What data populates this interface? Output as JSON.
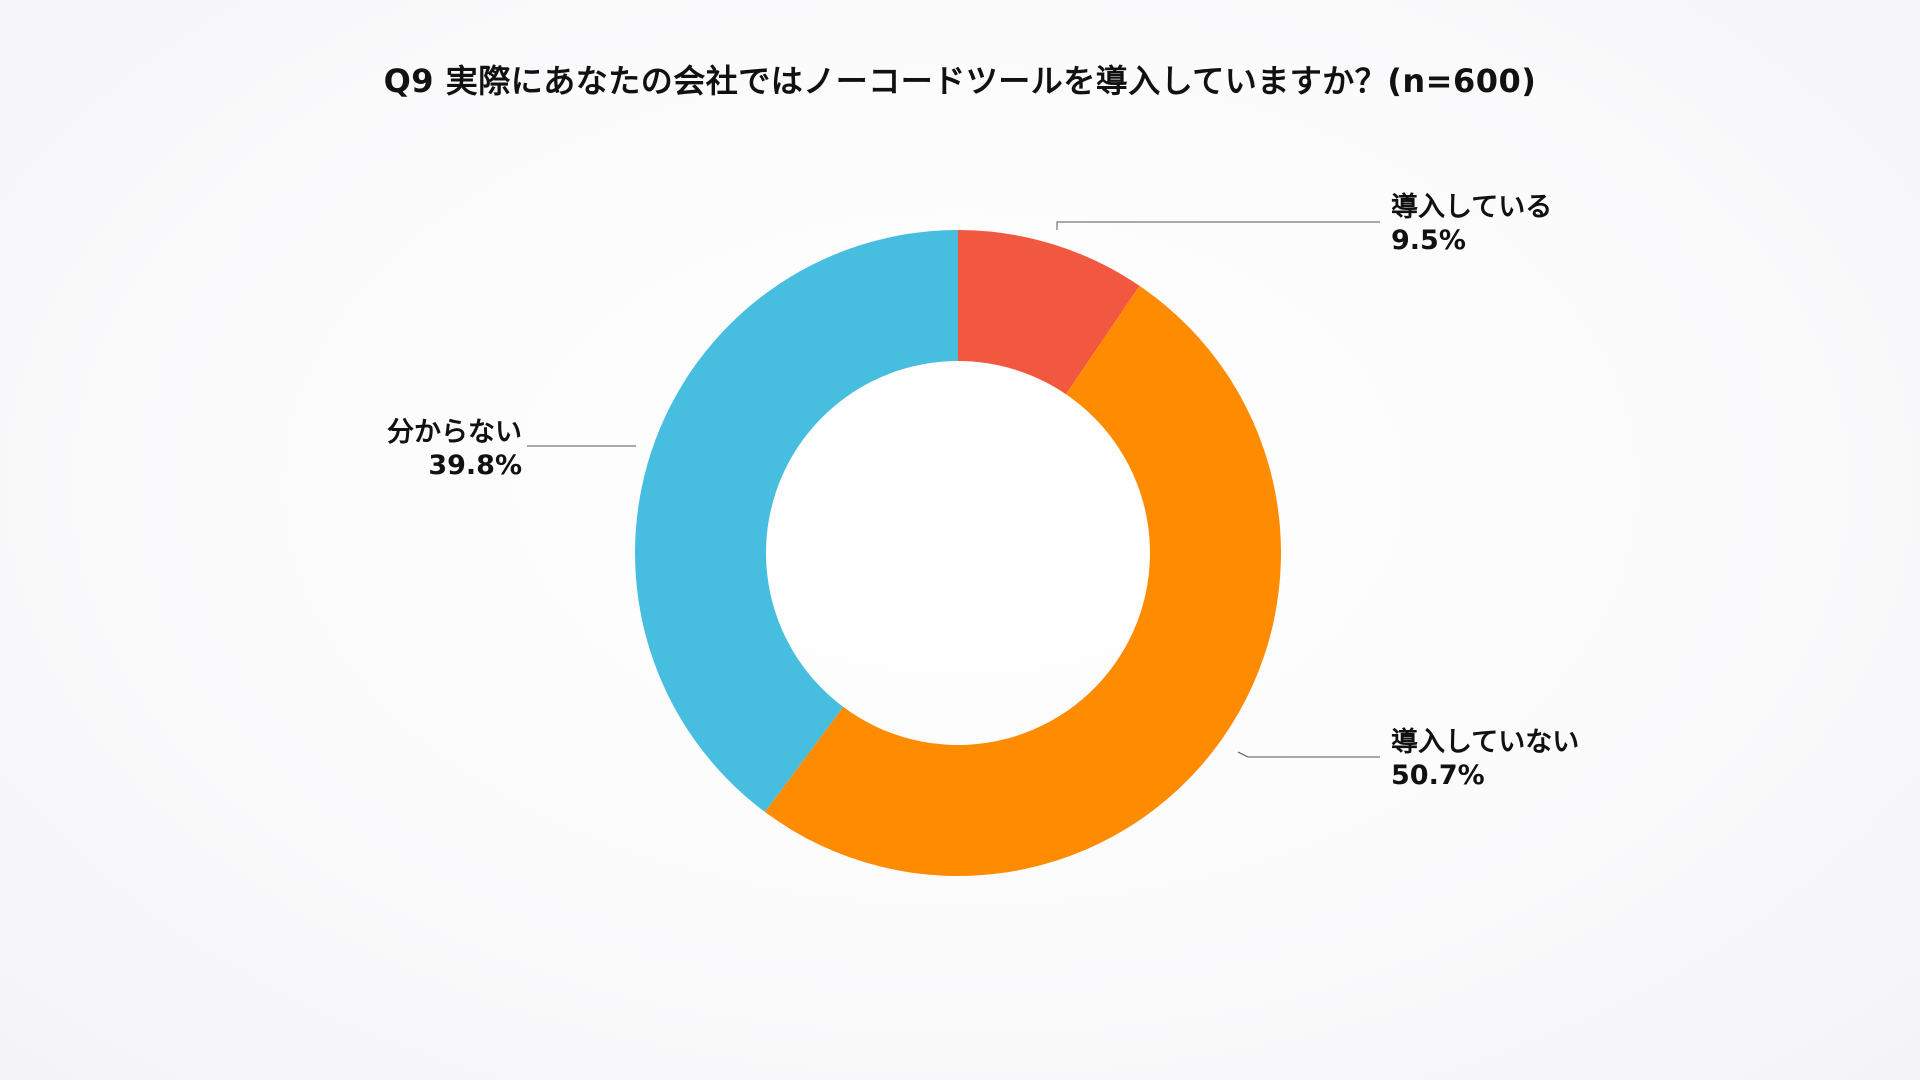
{
  "chart_data": {
    "type": "pie",
    "title": "Q9 実際にあなたの会社ではノーコードツールを導入していますか？(n=600)",
    "donut": true,
    "value_suffix": "%",
    "start_angle_deg": 0,
    "direction": "clockwise",
    "categories": [
      "導入している",
      "導入していない",
      "分からない"
    ],
    "values": [
      9.5,
      50.7,
      39.8
    ],
    "colors": [
      "#f25740",
      "#ff8b00",
      "#47bedf"
    ],
    "leader_line_color": "#555555",
    "legend": "none",
    "label_positions": [
      "top-right",
      "bottom-right",
      "left"
    ]
  }
}
